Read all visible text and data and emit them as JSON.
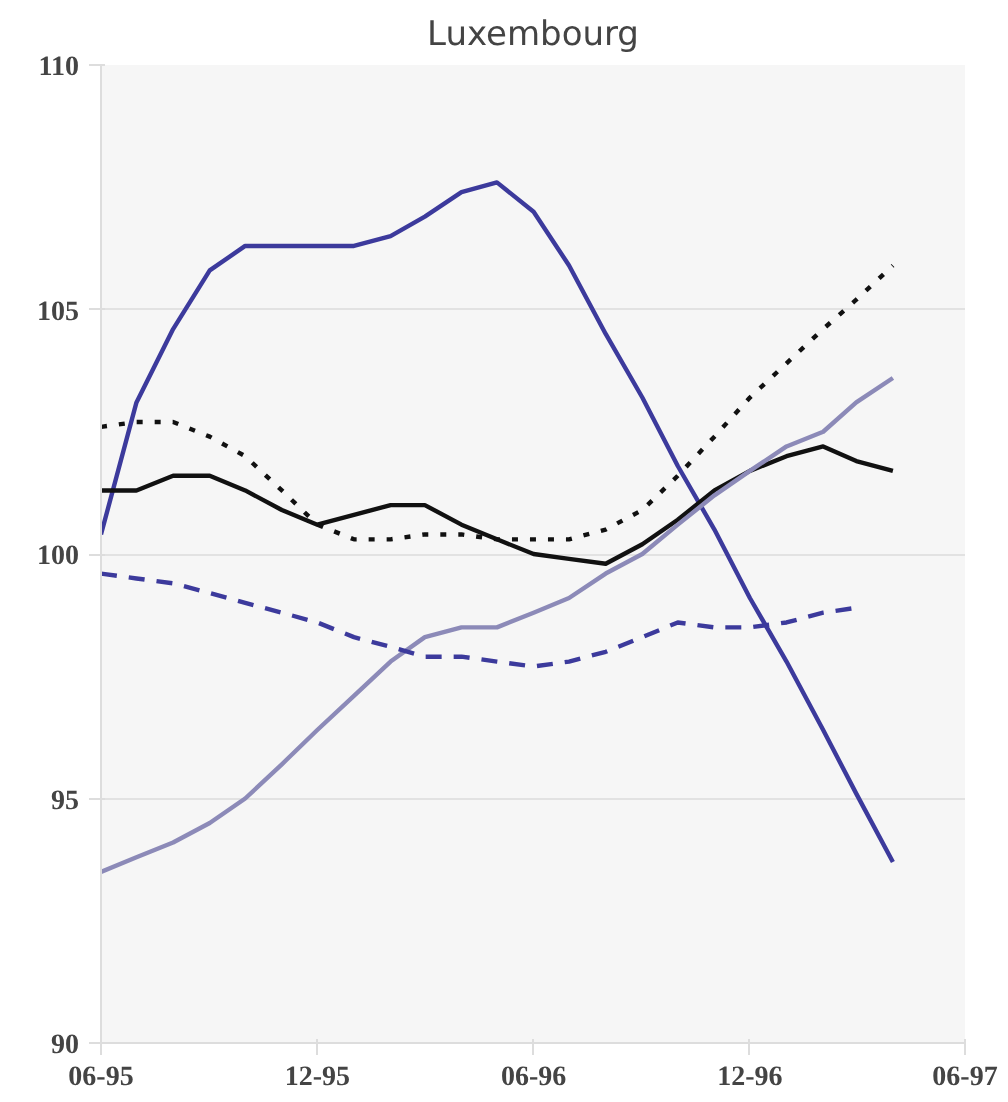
{
  "chart_data": {
    "type": "line",
    "title": "Luxembourg",
    "x": [
      "1995-06",
      "1995-07",
      "1995-08",
      "1995-09",
      "1995-10",
      "1995-11",
      "1995-12",
      "1996-01",
      "1996-02",
      "1996-03",
      "1996-04",
      "1996-05",
      "1996-06",
      "1996-07",
      "1996-08",
      "1996-09",
      "1996-10",
      "1996-11",
      "1996-12",
      "1997-01",
      "1997-02",
      "1997-03",
      "1997-04"
    ],
    "series": [
      {
        "color": "#3c3a9c",
        "line_style": "solid",
        "values": [
          100.4,
          103.1,
          104.6,
          105.8,
          106.3,
          106.3,
          106.3,
          106.3,
          106.5,
          106.9,
          107.4,
          107.6,
          107.0,
          105.9,
          104.5,
          103.2,
          101.8,
          100.5,
          99.1,
          97.8,
          96.4,
          95.1,
          93.7
        ]
      },
      {
        "color": "#111111",
        "line_style": "solid",
        "values": [
          101.3,
          101.3,
          101.6,
          101.6,
          101.3,
          100.9,
          100.6,
          100.8,
          101.0,
          101.0,
          100.6,
          100.3,
          100.0,
          99.9,
          99.8,
          100.2,
          100.7,
          101.3,
          101.7,
          102.0,
          102.2,
          101.9,
          101.7
        ]
      },
      {
        "color": "#8c8ab8",
        "line_style": "solid",
        "values": [
          93.5,
          93.8,
          94.1,
          94.5,
          95.0,
          95.7,
          96.4,
          97.1,
          97.8,
          98.3,
          98.5,
          98.5,
          98.8,
          99.1,
          99.6,
          100.0,
          100.6,
          101.2,
          101.7,
          102.2,
          102.5,
          103.1,
          103.6
        ]
      },
      {
        "color": "#111111",
        "line_style": "dotted",
        "values": [
          102.6,
          102.7,
          102.7,
          102.4,
          102.0,
          101.3,
          100.6,
          100.3,
          100.3,
          100.4,
          100.4,
          100.3,
          100.3,
          100.3,
          100.5,
          100.9,
          101.6,
          102.4,
          103.2,
          103.9,
          104.6,
          105.2,
          105.9
        ]
      },
      {
        "color": "#3c3a9c",
        "line_style": "dashed",
        "values": [
          99.6,
          99.5,
          99.4,
          99.2,
          99.0,
          98.8,
          98.6,
          98.3,
          98.1,
          97.9,
          97.9,
          97.8,
          97.7,
          97.8,
          98.0,
          98.3,
          98.6,
          98.5,
          98.5,
          98.6,
          98.8,
          98.9,
          null
        ]
      }
    ],
    "xlim": [
      "1995-06",
      "1997-06"
    ],
    "xticks": [
      {
        "value": "1995-06",
        "label": "06-95"
      },
      {
        "value": "1995-12",
        "label": "12-95"
      },
      {
        "value": "1996-06",
        "label": "06-96"
      },
      {
        "value": "1996-12",
        "label": "12-96"
      },
      {
        "value": "1997-06",
        "label": "06-97"
      }
    ],
    "ylim": [
      90,
      110
    ],
    "yticks": [
      90,
      95,
      100,
      105,
      110
    ],
    "grid": "y"
  }
}
